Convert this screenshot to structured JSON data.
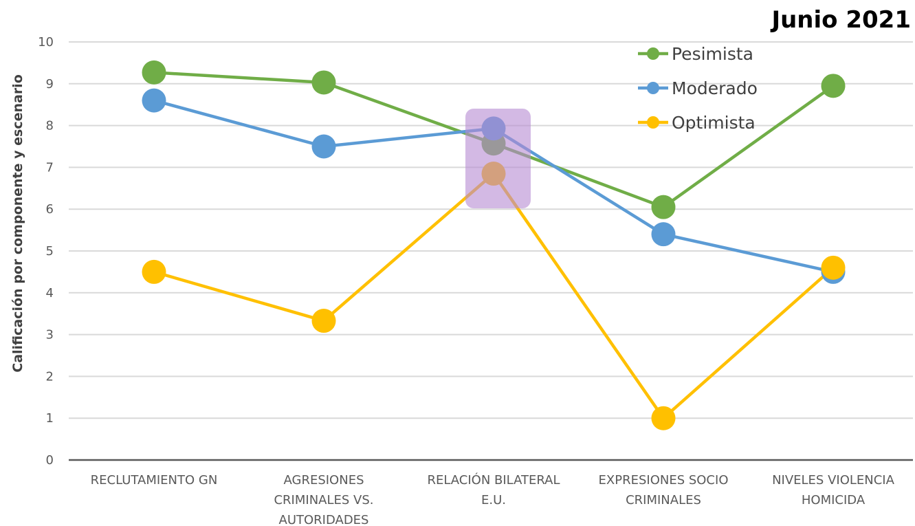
{
  "title": "Junio 2021",
  "colors": {
    "pesimista": "#70ad47",
    "moderado": "#5b9bd5",
    "optimista": "#ffc000",
    "highlight": "#b58ad2",
    "grid": "#d9d9d9",
    "axis": "#595959"
  },
  "chart_data": {
    "type": "line",
    "title": "Junio 2021",
    "ylabel": "Calificación por componente y escenario",
    "xlabel": "",
    "ylim": [
      0,
      10
    ],
    "yticks": [
      "0",
      "1",
      "2",
      "3",
      "4",
      "5",
      "6",
      "7",
      "8",
      "9",
      "10"
    ],
    "grid": true,
    "legend_position": "top-right",
    "categories": [
      [
        "RECLUTAMIENTO GN"
      ],
      [
        "AGRESIONES",
        "CRIMINALES VS.",
        "AUTORIDADES"
      ],
      [
        "RELACIÓN BILATERAL",
        "E.U."
      ],
      [
        "EXPRESIONES SOCIO",
        "CRIMINALES"
      ],
      [
        "NIVELES VIOLENCIA",
        "HOMICIDA"
      ]
    ],
    "highlighted_category": "RELACIÓN BILATERAL E.U.",
    "series": [
      {
        "name": "Pesimista",
        "color": "#70ad47",
        "values": [
          9.27,
          9.03,
          7.57,
          6.05,
          8.95
        ]
      },
      {
        "name": "Moderado",
        "color": "#5b9bd5",
        "values": [
          8.6,
          7.5,
          7.93,
          5.4,
          4.5
        ]
      },
      {
        "name": "Optimista",
        "color": "#ffc000",
        "values": [
          4.5,
          3.33,
          6.85,
          1.0,
          4.6
        ]
      }
    ]
  }
}
